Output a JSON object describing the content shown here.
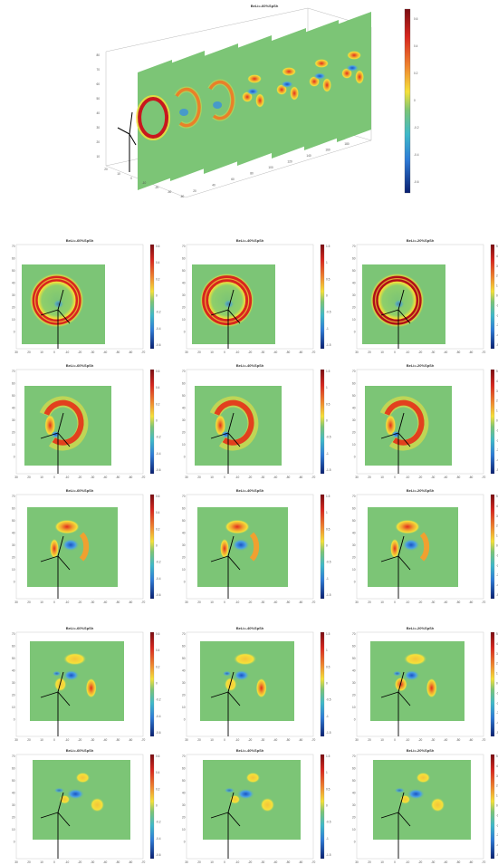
{
  "top_view": {
    "title": "BeLi=-60%SpSh",
    "colorbar_ticks": [
      "0.6",
      "0.4",
      "0.2",
      "0",
      "-0.2",
      "-0.4",
      "-0.6"
    ],
    "axis_ticks_z": [
      "80",
      "70",
      "60",
      "50",
      "40",
      "30",
      "20",
      "10"
    ],
    "axis_ticks_x": [
      "20",
      "40",
      "60",
      "80",
      "100",
      "120",
      "140",
      "160",
      "180"
    ],
    "axis_ticks_y": [
      "20",
      "10",
      "0",
      "-10",
      "-20",
      "-40",
      "-60"
    ]
  },
  "grid": {
    "col_titles": [
      "BeLi=-60%SpSh",
      "BeLi=-40%SpSh",
      "BeLi=-20%SpSh"
    ],
    "y_ticks": [
      "80",
      "70",
      "60",
      "50",
      "40",
      "30",
      "20",
      "10",
      "0"
    ],
    "x_ticks": [
      "30",
      "20",
      "10",
      "0",
      "-10",
      "-20",
      "-30",
      "-40",
      "-50",
      "-60",
      "-70"
    ],
    "colorbar_ticks": [
      [
        "0.6",
        "0.4",
        "0.2",
        "0",
        "-0.2",
        "-0.4",
        "-0.6"
      ],
      [
        "1.5",
        "1",
        "0.5",
        "0",
        "-0.5",
        "-1",
        "-1.5"
      ],
      [
        "5",
        "4",
        "3",
        "2",
        "1",
        "0",
        "-1",
        "-2",
        "-3",
        "-4",
        "-5"
      ]
    ],
    "colors": {
      "bg": "#7cc576",
      "red": "#c8171e",
      "orange": "#f0a030",
      "yellow": "#f5e13a",
      "blue": "#2e7bd6",
      "darkblue": "#0a3a9c"
    }
  }
}
